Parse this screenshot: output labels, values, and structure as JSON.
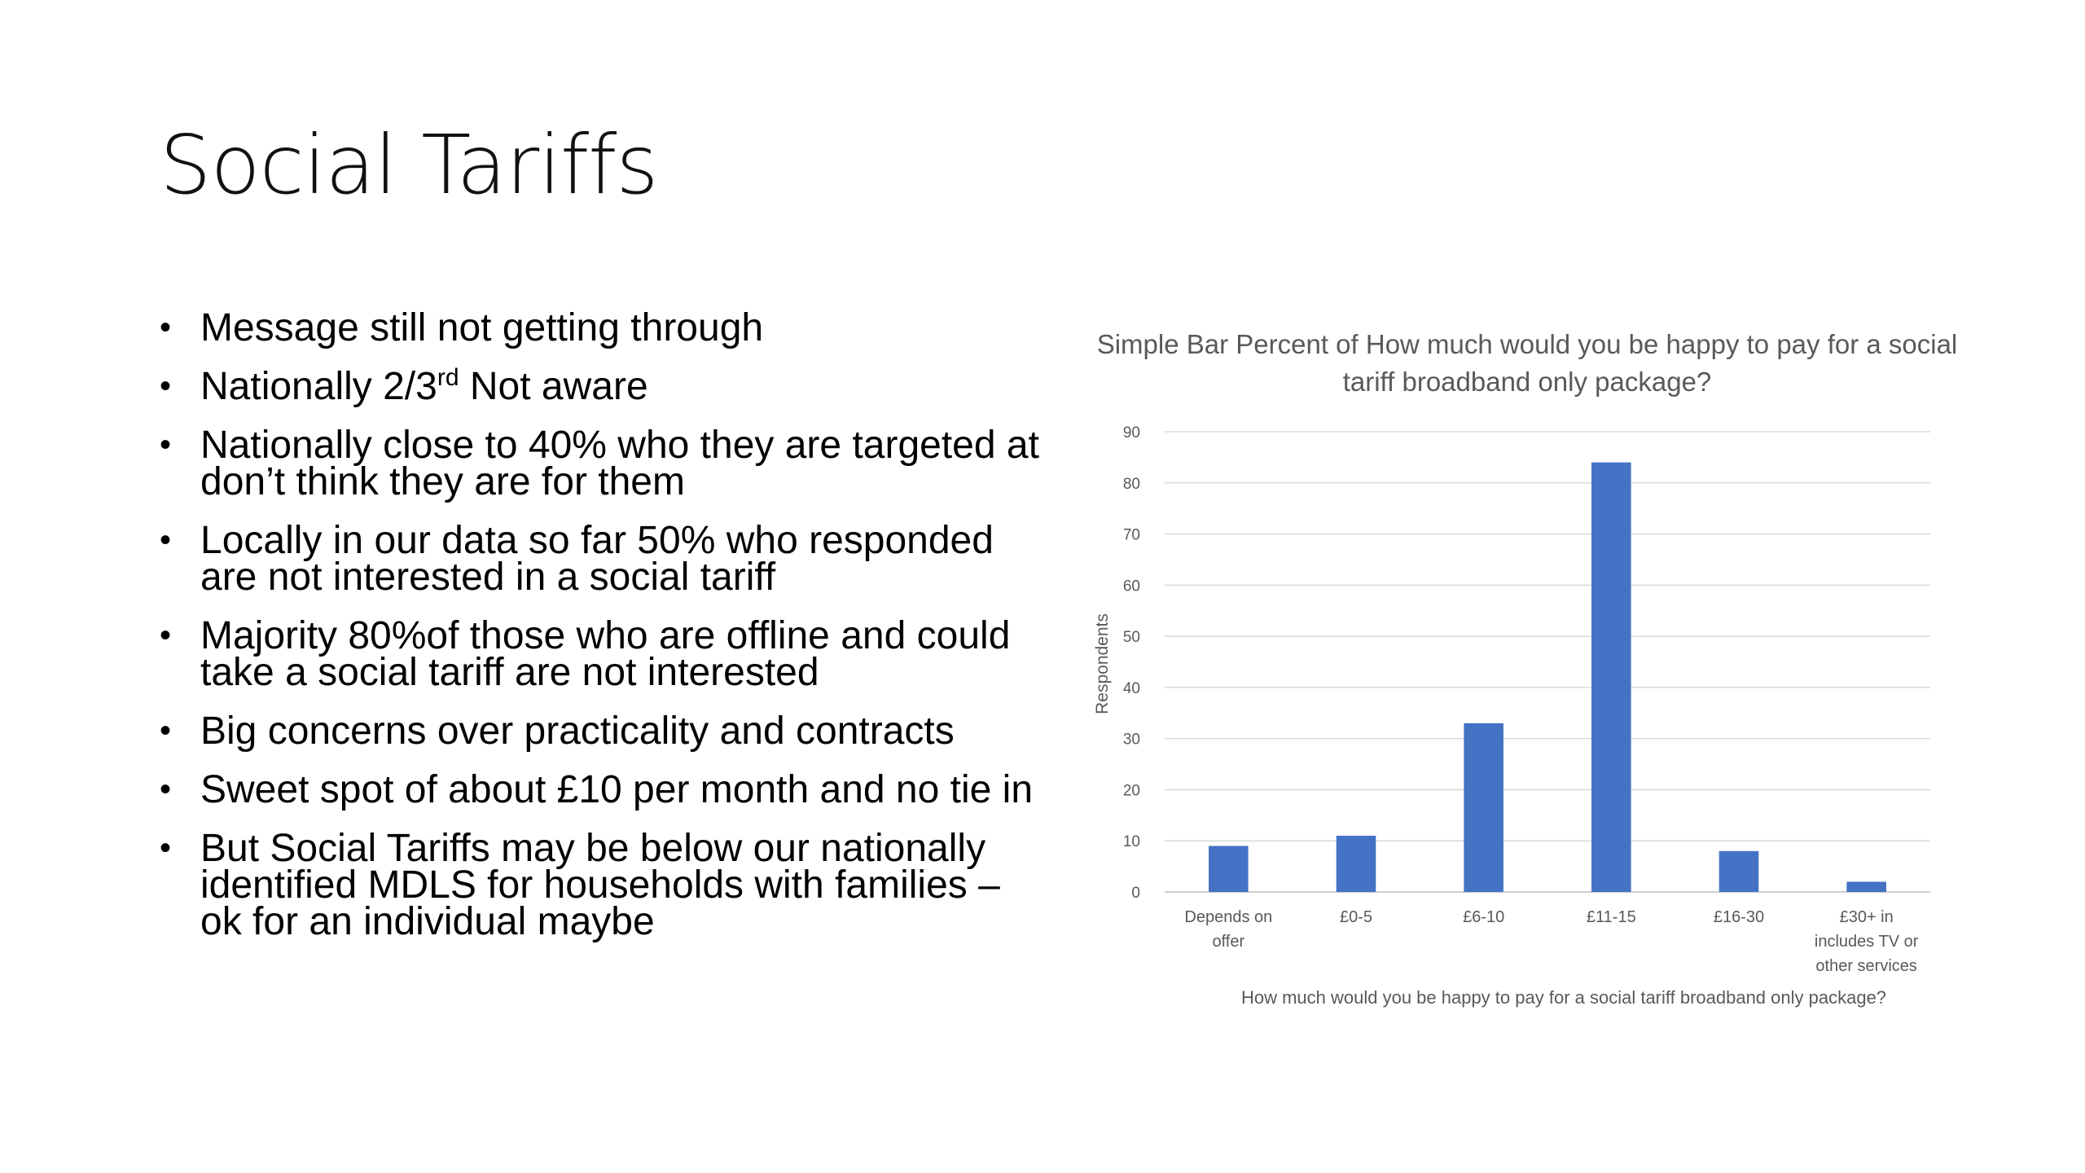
{
  "slide": {
    "title": "Social Tariffs",
    "bullets": [
      {
        "text": "Message still not getting through"
      },
      {
        "text": "Nationally 2/3",
        "sup": "rd",
        "after": " Not aware"
      },
      {
        "text": "Nationally close to 40% who they are targeted at don’t think they are for them"
      },
      {
        "text": "Locally in our data so far 50% who responded are not interested in a social tariff"
      },
      {
        "text": "Majority 80%of those who are offline and could take a social tariff are not interested"
      },
      {
        "text": "Big concerns over practicality and contracts"
      },
      {
        "text": "Sweet spot of about £10 per month and no tie in"
      },
      {
        "text": "But Social Tariffs may be below our nationally identified MDLS for households with families – ok for an individual maybe"
      }
    ],
    "bullet_glyph": "•"
  },
  "chart_data": {
    "type": "bar",
    "title": "Simple Bar Percent of How much would you be happy to pay for a social tariff broadband only package?",
    "xlabel": "How much would you be happy to pay for a social tariff broadband only package?",
    "ylabel": "Respondents",
    "ylim": [
      0,
      90
    ],
    "yticks": [
      0,
      10,
      20,
      30,
      40,
      50,
      60,
      70,
      80,
      90
    ],
    "grid": true,
    "legend": "none",
    "bar_color": "#4472C4",
    "categories": [
      [
        "Depends on",
        "offer"
      ],
      [
        "£0-5"
      ],
      [
        "£6-10"
      ],
      [
        "£11-15"
      ],
      [
        "£16-30"
      ],
      [
        "£30+ in",
        "includes TV or",
        "other services"
      ]
    ],
    "values": [
      9,
      11,
      33,
      84,
      8,
      2
    ]
  }
}
